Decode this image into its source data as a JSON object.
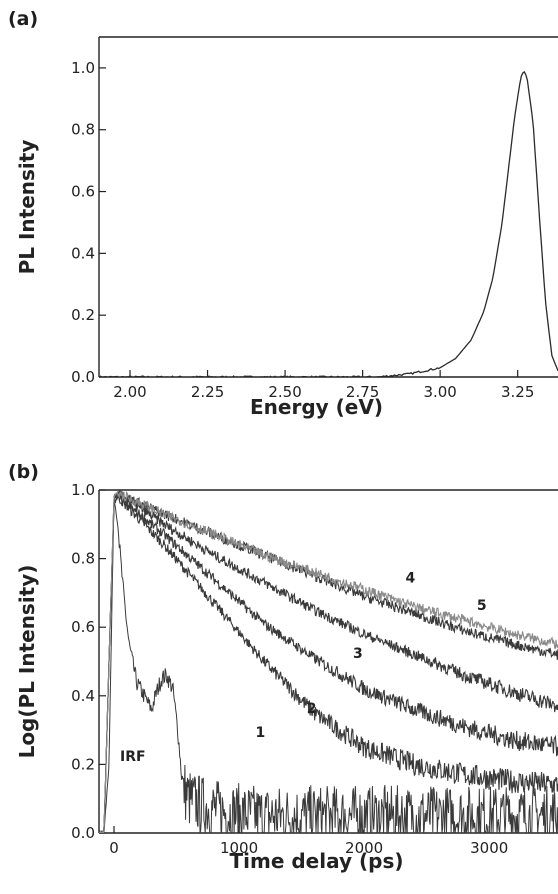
{
  "chart_data": [
    {
      "panel_label": "(a)",
      "type": "line",
      "xlabel": "Energy (eV)",
      "ylabel": "PL Intensity",
      "xlim": [
        1.9,
        3.38
      ],
      "ylim": [
        0,
        1.1
      ],
      "xticks": [
        2.0,
        2.25,
        2.5,
        2.75,
        3.0,
        3.25
      ],
      "xtick_labels": [
        "2.00",
        "2.25",
        "2.50",
        "2.75",
        "3.00",
        "3.25"
      ],
      "yticks": [
        0,
        0.2,
        0.4,
        0.6,
        0.8,
        1.0
      ],
      "ytick_labels": [
        "0.0",
        "0.2",
        "0.4",
        "0.6",
        "0.8",
        "1.0"
      ],
      "series": [
        {
          "x": [
            1.9,
            2.0,
            2.2,
            2.4,
            2.6,
            2.8,
            2.9,
            3.0,
            3.05,
            3.1,
            3.14,
            3.17,
            3.2,
            3.22,
            3.24,
            3.26,
            3.27,
            3.28,
            3.3,
            3.32,
            3.34,
            3.36,
            3.38
          ],
          "values": [
            0.0,
            0.0,
            0.0,
            0.0,
            0.0,
            0.0,
            0.01,
            0.03,
            0.06,
            0.12,
            0.21,
            0.32,
            0.5,
            0.67,
            0.84,
            0.97,
            0.99,
            0.97,
            0.82,
            0.52,
            0.24,
            0.07,
            0.02
          ]
        }
      ]
    },
    {
      "panel_label": "(b)",
      "type": "line",
      "xlabel": "Time delay (ps)",
      "ylabel": "Log(PL Intensity)",
      "xlim": [
        -120,
        3550
      ],
      "ylim": [
        0,
        1.0
      ],
      "xticks": [
        0,
        1000,
        2000,
        3000
      ],
      "xtick_labels": [
        "0",
        "1000",
        "2000",
        "3000"
      ],
      "yticks": [
        0,
        0.2,
        0.4,
        0.6,
        0.8,
        1.0
      ],
      "ytick_labels": [
        "0.0",
        "0.2",
        "0.4",
        "0.6",
        "0.8",
        "1.0"
      ],
      "series": [
        {
          "name": "IRF",
          "x": [
            -80,
            -40,
            -20,
            0,
            30,
            70,
            120,
            180,
            240,
            300,
            340,
            380,
            420,
            470,
            510,
            540,
            570,
            600,
            700,
            900,
            1200,
            1600,
            2000,
            2400,
            2800,
            3200,
            3550
          ],
          "values": [
            0.0,
            0.2,
            0.6,
            0.98,
            0.9,
            0.72,
            0.55,
            0.44,
            0.4,
            0.36,
            0.41,
            0.45,
            0.46,
            0.42,
            0.3,
            0.17,
            0.12,
            0.1,
            0.08,
            0.06,
            0.05,
            0.05,
            0.05,
            0.05,
            0.05,
            0.05,
            0.05
          ]
        },
        {
          "name": "1",
          "x": [
            -80,
            -40,
            0,
            30,
            400,
            800,
            1200,
            1600,
            2000,
            2400,
            2800,
            3200,
            3550
          ],
          "values": [
            0.0,
            0.5,
            0.96,
            0.98,
            0.84,
            0.67,
            0.5,
            0.35,
            0.25,
            0.2,
            0.17,
            0.15,
            0.14
          ]
        },
        {
          "name": "2",
          "x": [
            -80,
            -40,
            0,
            30,
            400,
            800,
            1200,
            1600,
            2000,
            2400,
            2800,
            3200,
            3550
          ],
          "values": [
            0.0,
            0.5,
            0.96,
            0.98,
            0.87,
            0.74,
            0.61,
            0.51,
            0.42,
            0.36,
            0.31,
            0.27,
            0.25
          ]
        },
        {
          "name": "3",
          "x": [
            -80,
            -40,
            0,
            30,
            400,
            800,
            1200,
            1600,
            2000,
            2400,
            2800,
            3200,
            3550
          ],
          "values": [
            0.0,
            0.5,
            0.97,
            0.99,
            0.9,
            0.81,
            0.73,
            0.65,
            0.58,
            0.52,
            0.46,
            0.41,
            0.37
          ]
        },
        {
          "name": "4",
          "x": [
            -80,
            -40,
            0,
            30,
            400,
            800,
            1200,
            1600,
            2000,
            2400,
            2800,
            3200,
            3550
          ],
          "values": [
            0.0,
            0.5,
            0.98,
            0.99,
            0.93,
            0.87,
            0.81,
            0.75,
            0.69,
            0.64,
            0.59,
            0.55,
            0.52
          ]
        },
        {
          "name": "5",
          "x": [
            -80,
            -40,
            0,
            30,
            400,
            800,
            1200,
            1600,
            2000,
            2400,
            2800,
            3200,
            3550
          ],
          "values": [
            0.0,
            0.5,
            0.98,
            0.99,
            0.93,
            0.87,
            0.81,
            0.76,
            0.71,
            0.66,
            0.62,
            0.58,
            0.55
          ]
        }
      ]
    }
  ]
}
